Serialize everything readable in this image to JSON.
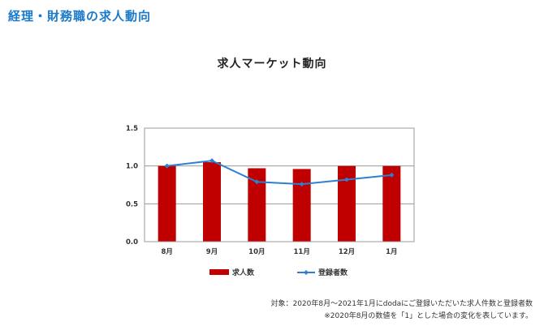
{
  "page": {
    "heading": "経理・財務職の求人動向",
    "note_line1": "対象：2020年8月〜2021年1月にdodaにご登録いただいた求人件数と登録者数",
    "note_line2": "※2020年8月の数値を「1」とした場合の変化を表しています。"
  },
  "chart_data": {
    "type": "bar",
    "title": "求人マーケット動向",
    "categories": [
      "8月",
      "9月",
      "10月",
      "11月",
      "12月",
      "1月"
    ],
    "series": [
      {
        "name": "求人数",
        "type": "bar",
        "color": "#c00000",
        "values": [
          1.0,
          1.05,
          0.97,
          0.96,
          1.0,
          1.0
        ]
      },
      {
        "name": "登録者数",
        "type": "line",
        "color": "#2f7fd0",
        "values": [
          1.0,
          1.07,
          0.79,
          0.76,
          0.82,
          0.88
        ]
      }
    ],
    "ylim": [
      0,
      1.5
    ],
    "yticks": [
      "0.0",
      "0.5",
      "1.0",
      "1.5"
    ],
    "grid": true,
    "legend": "bottom"
  }
}
